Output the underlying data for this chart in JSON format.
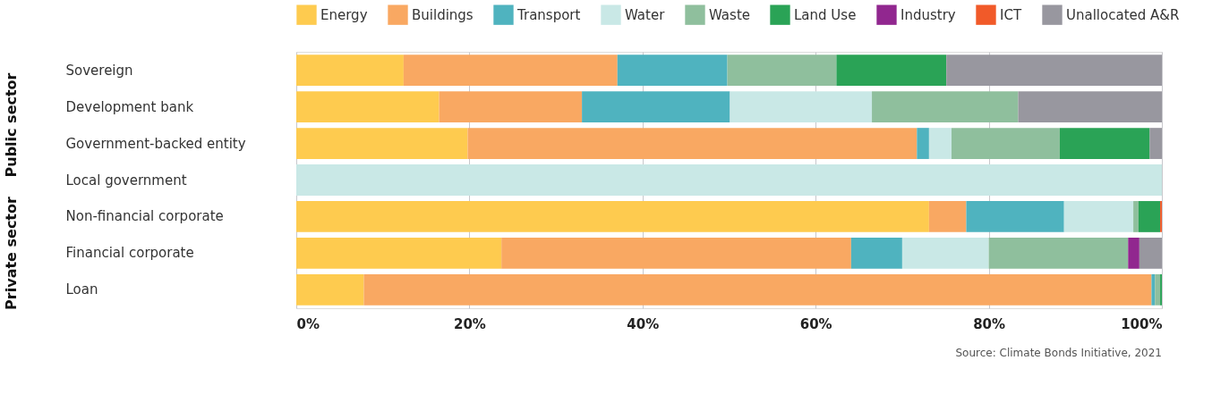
{
  "chart_data": {
    "type": "bar",
    "orientation": "horizontal",
    "stacked": true,
    "categories": [
      "Sovereign",
      "Development bank",
      "Government-backed entity",
      "Local government",
      "Non-financial corporate",
      "Financial corporate",
      "Loan"
    ],
    "series": [
      {
        "name": "Energy",
        "color": "#fecb4f",
        "values": [
          12.4,
          16.5,
          19.8,
          null,
          73.1,
          23.7,
          7.8
        ]
      },
      {
        "name": "Buildings",
        "color": "#f9a862",
        "values": [
          24.7,
          16.5,
          51.9,
          null,
          4.3,
          40.4,
          91.0
        ]
      },
      {
        "name": "Transport",
        "color": "#4fb3bf",
        "values": [
          12.7,
          17.1,
          1.4,
          null,
          11.3,
          5.9,
          0.4
        ]
      },
      {
        "name": "Water",
        "color": "#c9e8e6",
        "values": [
          null,
          16.4,
          2.6,
          100,
          8.0,
          10.0,
          null
        ]
      },
      {
        "name": "Waste",
        "color": "#8fbf9d",
        "values": [
          12.6,
          16.9,
          12.5,
          null,
          0.6,
          16.1,
          0.6
        ]
      },
      {
        "name": "Land Use",
        "color": "#2aa356",
        "values": [
          12.7,
          null,
          10.4,
          null,
          2.5,
          null,
          0.2
        ]
      },
      {
        "name": "Industry",
        "color": "#91278f",
        "values": [
          null,
          null,
          null,
          null,
          null,
          1.3,
          null
        ]
      },
      {
        "name": "ICT",
        "color": "#f15a29",
        "values": [
          null,
          null,
          null,
          null,
          0.2,
          null,
          null
        ]
      },
      {
        "name": "Unallocated A&R",
        "color": "#98979f",
        "values": [
          24.9,
          16.6,
          1.4,
          null,
          null,
          2.6,
          null
        ]
      }
    ],
    "xlim": [
      0,
      100
    ],
    "xticks": [
      {
        "value": 0,
        "label": "0%"
      },
      {
        "value": 20,
        "label": "20%"
      },
      {
        "value": 40,
        "label": "40%"
      },
      {
        "value": 60,
        "label": "60%"
      },
      {
        "value": 80,
        "label": "80%"
      },
      {
        "value": 100,
        "label": "100%"
      }
    ],
    "grid": "x",
    "legend": "top left",
    "annotations": [
      "Public sector",
      "Private sector",
      "Source: Climate Bonds Initiative, 2021"
    ]
  }
}
